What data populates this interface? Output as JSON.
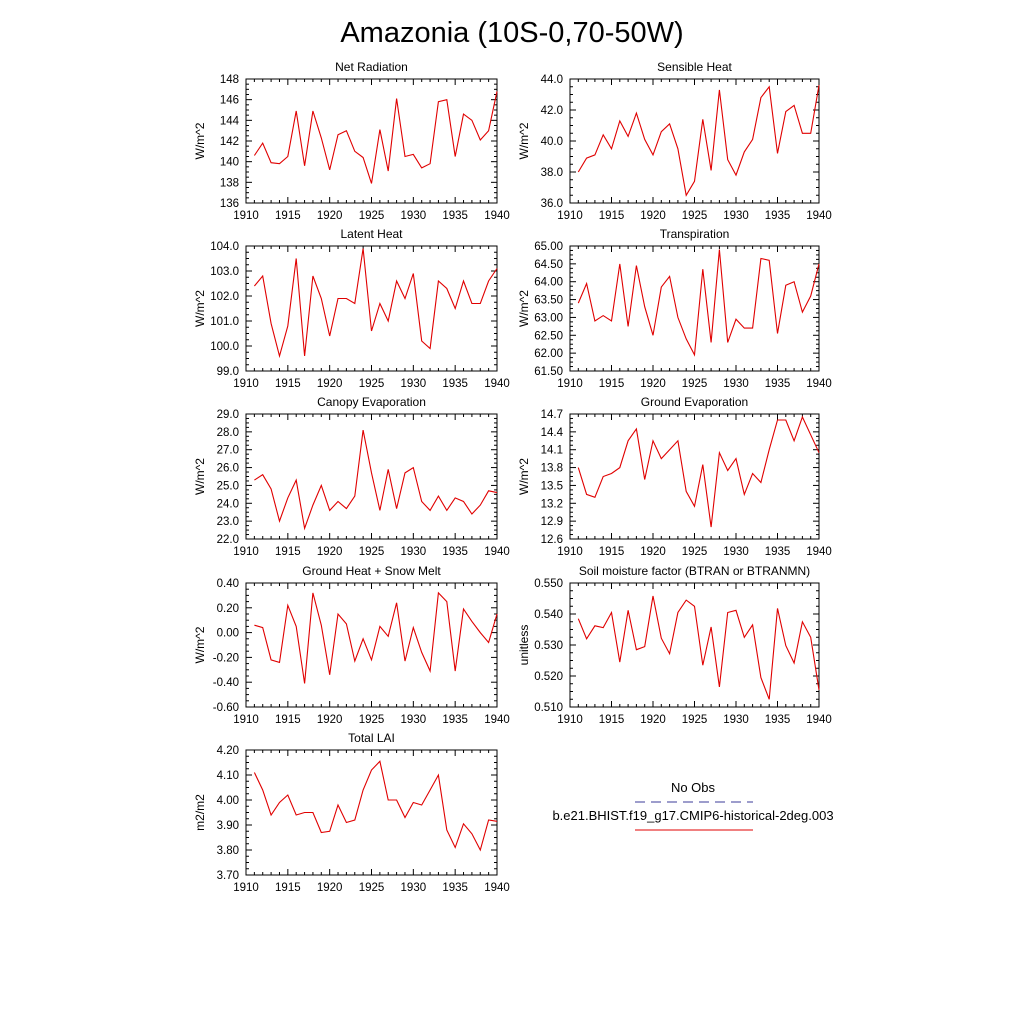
{
  "title": "Amazonia (10S-0,70-50W)",
  "legend": {
    "obs_label": "No Obs",
    "obs_color": "#3b3b9a",
    "model_label": "b.e21.BHIST.f19_g17.CMIP6-historical-2deg.003",
    "model_color": "#e00000"
  },
  "chart_data": [
    {
      "type": "line",
      "title": "Net Radiation",
      "ylabel": "W/m^2",
      "xlim": [
        1910,
        1940
      ],
      "ylim": [
        136,
        148
      ],
      "yticks": [
        136,
        138,
        140,
        142,
        144,
        146,
        148
      ],
      "ytick_labels": [
        "136",
        "138",
        "140",
        "142",
        "144",
        "146",
        "148"
      ],
      "xticks": [
        1910,
        1915,
        1920,
        1925,
        1930,
        1935,
        1940
      ],
      "x_start": 1911,
      "series": [
        {
          "values": [
            140.6,
            141.8,
            139.9,
            139.8,
            140.5,
            144.9,
            139.6,
            144.9,
            142.3,
            139.2,
            142.6,
            143.0,
            141.0,
            140.4,
            137.9,
            143.1,
            139.1,
            146.1,
            140.5,
            140.7,
            139.4,
            139.8,
            145.8,
            146.0,
            140.5,
            144.6,
            144.0,
            142.1,
            143.0,
            146.8
          ]
        }
      ]
    },
    {
      "type": "line",
      "title": "Sensible Heat",
      "ylabel": "W/m^2",
      "xlim": [
        1910,
        1940
      ],
      "ylim": [
        36,
        44
      ],
      "yticks": [
        36,
        38,
        40,
        42,
        44
      ],
      "ytick_labels": [
        "36.0",
        "38.0",
        "40.0",
        "42.0",
        "44.0"
      ],
      "xticks": [
        1910,
        1915,
        1920,
        1925,
        1930,
        1935,
        1940
      ],
      "x_start": 1911,
      "series": [
        {
          "values": [
            38.0,
            38.9,
            39.1,
            40.4,
            39.5,
            41.3,
            40.3,
            41.8,
            40.1,
            39.1,
            40.6,
            41.1,
            39.5,
            36.5,
            37.4,
            41.4,
            38.1,
            43.3,
            38.8,
            37.8,
            39.3,
            40.1,
            42.8,
            43.5,
            39.2,
            41.9,
            42.3,
            40.5,
            40.5,
            43.6
          ]
        }
      ]
    },
    {
      "type": "line",
      "title": "Latent Heat",
      "ylabel": "W/m^2",
      "xlim": [
        1910,
        1940
      ],
      "ylim": [
        99,
        104
      ],
      "yticks": [
        99,
        100,
        101,
        102,
        103,
        104
      ],
      "ytick_labels": [
        "99.0",
        "100.0",
        "101.0",
        "102.0",
        "103.0",
        "104.0"
      ],
      "xticks": [
        1910,
        1915,
        1920,
        1925,
        1930,
        1935,
        1940
      ],
      "x_start": 1911,
      "series": [
        {
          "values": [
            102.4,
            102.8,
            100.9,
            99.6,
            100.8,
            103.5,
            99.6,
            102.8,
            101.9,
            100.4,
            101.9,
            101.9,
            101.7,
            103.9,
            100.6,
            101.7,
            101.0,
            102.6,
            101.9,
            102.9,
            100.2,
            99.9,
            102.6,
            102.3,
            101.5,
            102.6,
            101.7,
            101.7,
            102.6,
            103.1
          ]
        }
      ]
    },
    {
      "type": "line",
      "title": "Transpiration",
      "ylabel": "W/m^2",
      "xlim": [
        1910,
        1940
      ],
      "ylim": [
        61.5,
        65
      ],
      "yticks": [
        61.5,
        62,
        62.5,
        63,
        63.5,
        64,
        64.5,
        65
      ],
      "ytick_labels": [
        "61.50",
        "62.00",
        "62.50",
        "63.00",
        "63.50",
        "64.00",
        "64.50",
        "65.00"
      ],
      "xticks": [
        1910,
        1915,
        1920,
        1925,
        1930,
        1935,
        1940
      ],
      "x_start": 1911,
      "series": [
        {
          "values": [
            63.4,
            63.95,
            62.9,
            63.05,
            62.9,
            64.5,
            62.75,
            64.45,
            63.3,
            62.5,
            63.85,
            64.15,
            63.0,
            62.4,
            61.95,
            64.35,
            62.3,
            64.9,
            62.3,
            62.95,
            62.7,
            62.7,
            64.65,
            64.6,
            62.55,
            63.9,
            64.0,
            63.15,
            63.6,
            64.5
          ]
        }
      ]
    },
    {
      "type": "line",
      "title": "Canopy Evaporation",
      "ylabel": "W/m^2",
      "xlim": [
        1910,
        1940
      ],
      "ylim": [
        22,
        29
      ],
      "yticks": [
        22,
        23,
        24,
        25,
        26,
        27,
        28,
        29
      ],
      "ytick_labels": [
        "22.0",
        "23.0",
        "24.0",
        "25.0",
        "26.0",
        "27.0",
        "28.0",
        "29.0"
      ],
      "xticks": [
        1910,
        1915,
        1920,
        1925,
        1930,
        1935,
        1940
      ],
      "x_start": 1911,
      "series": [
        {
          "values": [
            25.3,
            25.6,
            24.8,
            23.0,
            24.3,
            25.3,
            22.6,
            23.9,
            25.0,
            23.6,
            24.1,
            23.7,
            24.4,
            28.1,
            25.7,
            23.6,
            25.9,
            23.7,
            25.7,
            26.0,
            24.1,
            23.6,
            24.4,
            23.6,
            24.3,
            24.1,
            23.4,
            23.9,
            24.7,
            24.6
          ]
        }
      ]
    },
    {
      "type": "line",
      "title": "Ground Evaporation",
      "ylabel": "W/m^2",
      "xlim": [
        1910,
        1940
      ],
      "ylim": [
        12.6,
        14.7
      ],
      "yticks": [
        12.6,
        12.9,
        13.2,
        13.5,
        13.8,
        14.1,
        14.4,
        14.7
      ],
      "ytick_labels": [
        "12.6",
        "12.9",
        "13.2",
        "13.5",
        "13.8",
        "14.1",
        "14.4",
        "14.7"
      ],
      "xticks": [
        1910,
        1915,
        1920,
        1925,
        1930,
        1935,
        1940
      ],
      "x_start": 1911,
      "series": [
        {
          "values": [
            13.8,
            13.35,
            13.3,
            13.65,
            13.7,
            13.8,
            14.25,
            14.45,
            13.6,
            14.25,
            13.95,
            14.1,
            14.25,
            13.4,
            13.15,
            13.85,
            12.8,
            14.05,
            13.75,
            13.95,
            13.35,
            13.7,
            13.55,
            14.1,
            14.6,
            14.6,
            14.25,
            14.65,
            14.35,
            14.05
          ]
        }
      ]
    },
    {
      "type": "line",
      "title": "Ground Heat + Snow Melt",
      "ylabel": "W/m^2",
      "xlim": [
        1910,
        1940
      ],
      "ylim": [
        -0.6,
        0.4
      ],
      "yticks": [
        -0.6,
        -0.4,
        -0.2,
        0,
        0.2,
        0.4
      ],
      "ytick_labels": [
        "-0.60",
        "-0.40",
        "-0.20",
        "0.00",
        "0.20",
        "0.40"
      ],
      "xticks": [
        1910,
        1915,
        1920,
        1925,
        1930,
        1935,
        1940
      ],
      "x_start": 1911,
      "series": [
        {
          "values": [
            0.06,
            0.04,
            -0.22,
            -0.24,
            0.22,
            0.05,
            -0.41,
            0.32,
            0.06,
            -0.34,
            0.15,
            0.07,
            -0.23,
            -0.05,
            -0.22,
            0.05,
            -0.03,
            0.24,
            -0.23,
            0.04,
            -0.16,
            -0.31,
            0.32,
            0.25,
            -0.31,
            0.19,
            0.09,
            0.0,
            -0.08,
            0.15
          ]
        }
      ]
    },
    {
      "type": "line",
      "title": "Soil moisture factor (BTRAN or BTRANMN)",
      "ylabel": "unitless",
      "xlim": [
        1910,
        1940
      ],
      "ylim": [
        0.51,
        0.55
      ],
      "yticks": [
        0.51,
        0.52,
        0.53,
        0.54,
        0.55
      ],
      "ytick_labels": [
        "0.510",
        "0.520",
        "0.530",
        "0.540",
        "0.550"
      ],
      "xticks": [
        1910,
        1915,
        1920,
        1925,
        1930,
        1935,
        1940
      ],
      "x_start": 1911,
      "series": [
        {
          "values": [
            0.5385,
            0.532,
            0.5362,
            0.5356,
            0.5405,
            0.5245,
            0.5412,
            0.5285,
            0.5295,
            0.5458,
            0.5322,
            0.5272,
            0.5405,
            0.5445,
            0.5425,
            0.5235,
            0.5358,
            0.5165,
            0.5405,
            0.5412,
            0.5325,
            0.5365,
            0.5195,
            0.5125,
            0.5418,
            0.5298,
            0.5242,
            0.5375,
            0.5325,
            0.5155
          ]
        }
      ]
    },
    {
      "type": "line",
      "title": "Total LAI",
      "ylabel": "m2/m2",
      "xlim": [
        1910,
        1940
      ],
      "ylim": [
        3.7,
        4.2
      ],
      "yticks": [
        3.7,
        3.8,
        3.9,
        4.0,
        4.1,
        4.2
      ],
      "ytick_labels": [
        "3.70",
        "3.80",
        "3.90",
        "4.00",
        "4.10",
        "4.20"
      ],
      "xticks": [
        1910,
        1915,
        1920,
        1925,
        1930,
        1935,
        1940
      ],
      "x_start": 1911,
      "series": [
        {
          "values": [
            4.11,
            4.04,
            3.94,
            3.99,
            4.02,
            3.94,
            3.95,
            3.95,
            3.87,
            3.875,
            3.98,
            3.91,
            3.92,
            4.04,
            4.12,
            4.155,
            4.0,
            4.0,
            3.93,
            3.99,
            3.98,
            4.04,
            4.1,
            3.88,
            3.81,
            3.905,
            3.865,
            3.8,
            3.92,
            3.915
          ]
        }
      ]
    }
  ]
}
